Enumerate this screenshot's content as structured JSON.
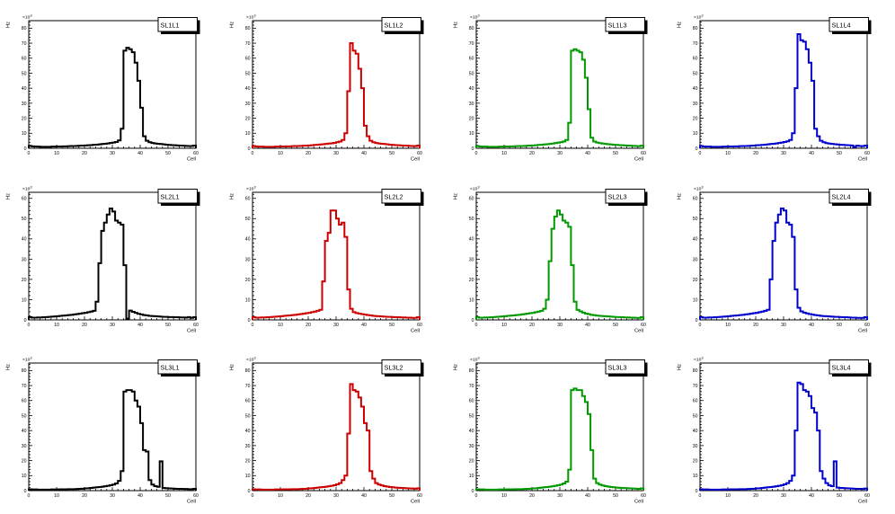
{
  "axes": {
    "x_title": "Cell",
    "y_title": "Hz",
    "y_exponent_base": "×10",
    "y_exponent_power": "3",
    "x_ticks": [
      0,
      10,
      20,
      30,
      40,
      50,
      60
    ],
    "x_range": [
      0,
      60
    ],
    "x_minor_step": 2,
    "y_minor_step": 2
  },
  "colors": {
    "black": "#000000",
    "red": "#cc0000",
    "green": "#009900",
    "blue": "#0000cc"
  },
  "chart_data": [
    {
      "type": "histogram",
      "label": "SL1L1",
      "color_name": "black",
      "series_color": "#000000",
      "x_label": "Cell",
      "y_label": "Hz",
      "y_scale_factor": "×10³",
      "x_range": [
        0,
        60
      ],
      "bin_width": 1,
      "y_max": 85,
      "y_ticks": [
        0,
        10,
        20,
        30,
        40,
        50,
        60,
        70,
        80
      ],
      "values": [
        1.6,
        1.3,
        1.2,
        1.1,
        1.0,
        1.0,
        1.0,
        1.0,
        1.1,
        1.1,
        1.2,
        1.2,
        1.3,
        1.3,
        1.4,
        1.5,
        1.5,
        1.6,
        1.7,
        1.8,
        1.9,
        2.0,
        2.1,
        2.3,
        2.4,
        2.6,
        2.8,
        3.0,
        3.2,
        3.5,
        3.8,
        4.2,
        5.2,
        13,
        65,
        67,
        66,
        64,
        57,
        45,
        27,
        8,
        5,
        4,
        3.5,
        3.2,
        3.0,
        2.8,
        2.6,
        2.4,
        2.2,
        2.1,
        2.0,
        1.9,
        1.8,
        1.7,
        1.6,
        1.5,
        1.5,
        1.8
      ]
    },
    {
      "type": "histogram",
      "label": "SL1L2",
      "color_name": "red",
      "series_color": "#cc0000",
      "x_label": "Cell",
      "y_label": "Hz",
      "y_scale_factor": "×10³",
      "x_range": [
        0,
        60
      ],
      "bin_width": 1,
      "y_max": 85,
      "y_ticks": [
        0,
        10,
        20,
        30,
        40,
        50,
        60,
        70,
        80
      ],
      "values": [
        1.5,
        1.2,
        1.1,
        1.1,
        1.0,
        1.0,
        1.0,
        1.0,
        1.1,
        1.1,
        1.2,
        1.2,
        1.3,
        1.3,
        1.4,
        1.5,
        1.5,
        1.6,
        1.7,
        1.8,
        1.9,
        2.0,
        2.2,
        2.3,
        2.5,
        2.7,
        2.9,
        3.1,
        3.3,
        3.6,
        4.0,
        4.5,
        5.5,
        10,
        38,
        70,
        65,
        63,
        53,
        40,
        15,
        8,
        5,
        4,
        3.5,
        3.2,
        3.0,
        2.8,
        2.6,
        2.4,
        2.2,
        2.1,
        2.0,
        1.9,
        1.8,
        1.7,
        1.6,
        1.5,
        1.4,
        1.8
      ]
    },
    {
      "type": "histogram",
      "label": "SL1L3",
      "color_name": "green",
      "series_color": "#009900",
      "x_label": "Cell",
      "y_label": "Hz",
      "y_scale_factor": "×10³",
      "x_range": [
        0,
        60
      ],
      "bin_width": 1,
      "y_max": 85,
      "y_ticks": [
        0,
        10,
        20,
        30,
        40,
        50,
        60,
        70,
        80
      ],
      "values": [
        1.5,
        1.2,
        1.1,
        1.1,
        1.0,
        1.0,
        1.0,
        1.0,
        1.1,
        1.1,
        1.2,
        1.2,
        1.3,
        1.3,
        1.4,
        1.5,
        1.5,
        1.6,
        1.7,
        1.8,
        1.9,
        2.0,
        2.2,
        2.3,
        2.5,
        2.7,
        2.9,
        3.1,
        3.4,
        3.7,
        4.0,
        4.5,
        5.5,
        17,
        65,
        66,
        65,
        64,
        59,
        47,
        26,
        7,
        4.5,
        3.8,
        3.4,
        3.1,
        2.9,
        2.7,
        2.5,
        2.3,
        2.2,
        2.1,
        2.0,
        1.9,
        1.8,
        1.7,
        1.6,
        1.5,
        1.4,
        1.7
      ]
    },
    {
      "type": "histogram",
      "label": "SL1L4",
      "color_name": "blue",
      "series_color": "#0000cc",
      "x_label": "Cell",
      "y_label": "Hz",
      "y_scale_factor": "×10³",
      "x_range": [
        0,
        60
      ],
      "bin_width": 1,
      "y_max": 85,
      "y_ticks": [
        0,
        10,
        20,
        30,
        40,
        50,
        60,
        70,
        80
      ],
      "values": [
        1.5,
        1.2,
        1.1,
        1.1,
        1.0,
        1.0,
        1.0,
        1.0,
        1.1,
        1.1,
        1.2,
        1.2,
        1.3,
        1.3,
        1.4,
        1.5,
        1.5,
        1.6,
        1.7,
        1.8,
        2.0,
        2.1,
        2.2,
        2.4,
        2.6,
        2.8,
        3.0,
        3.2,
        3.5,
        3.8,
        4.2,
        4.6,
        5.5,
        10,
        40,
        76,
        72,
        71,
        66,
        57,
        45,
        13,
        8,
        5,
        4,
        3.4,
        3.1,
        2.9,
        2.7,
        2.5,
        2.3,
        2.2,
        2.1,
        2.0,
        1.9,
        0.9,
        1.7,
        1.5,
        1.4,
        1.8
      ]
    },
    {
      "type": "histogram",
      "label": "SL2L1",
      "color_name": "black",
      "series_color": "#000000",
      "x_label": "Cell",
      "y_label": "Hz",
      "y_scale_factor": "×10³",
      "x_range": [
        0,
        60
      ],
      "bin_width": 1,
      "y_max": 63,
      "y_ticks": [
        0,
        10,
        20,
        30,
        40,
        50,
        60
      ],
      "values": [
        1.4,
        1.1,
        1.1,
        1.2,
        1.2,
        1.3,
        1.4,
        1.5,
        1.6,
        1.7,
        1.8,
        2.0,
        2.1,
        2.2,
        2.4,
        2.5,
        2.7,
        2.9,
        3.1,
        3.3,
        3.5,
        3.8,
        4.1,
        4.5,
        9,
        28,
        44,
        48,
        52,
        55,
        53.5,
        49,
        48,
        47,
        27,
        0.6,
        4.6,
        4.0,
        3.5,
        3.0,
        2.7,
        2.4,
        2.2,
        2.0,
        1.9,
        1.8,
        1.7,
        1.6,
        1.5,
        1.5,
        1.4,
        1.4,
        1.3,
        1.3,
        1.2,
        1.2,
        1.1,
        1.4,
        1.0,
        1.3
      ]
    },
    {
      "type": "histogram",
      "label": "SL2L2",
      "color_name": "red",
      "series_color": "#cc0000",
      "x_label": "Cell",
      "y_label": "Hz",
      "y_scale_factor": "×10³",
      "x_range": [
        0,
        60
      ],
      "bin_width": 1,
      "y_max": 63,
      "y_ticks": [
        0,
        10,
        20,
        30,
        40,
        50,
        60
      ],
      "values": [
        1.4,
        1.1,
        1.1,
        1.2,
        1.2,
        1.3,
        1.4,
        1.5,
        1.6,
        1.7,
        1.8,
        2.0,
        2.1,
        2.2,
        2.4,
        2.5,
        2.7,
        2.9,
        3.1,
        3.3,
        3.5,
        3.8,
        4.1,
        4.5,
        5,
        19,
        39,
        43,
        54,
        54,
        50,
        47,
        48,
        41,
        15,
        5.5,
        3.8,
        3.4,
        3.1,
        2.8,
        2.6,
        2.4,
        2.2,
        2.0,
        1.9,
        1.8,
        1.7,
        1.6,
        1.5,
        1.5,
        1.4,
        1.3,
        1.3,
        1.2,
        1.2,
        1.1,
        1.1,
        1.0,
        1.0,
        1.3
      ]
    },
    {
      "type": "histogram",
      "label": "SL2L3",
      "color_name": "green",
      "series_color": "#009900",
      "x_label": "Cell",
      "y_label": "Hz",
      "y_scale_factor": "×10³",
      "x_range": [
        0,
        60
      ],
      "bin_width": 1,
      "y_max": 63,
      "y_ticks": [
        0,
        10,
        20,
        30,
        40,
        50,
        60
      ],
      "values": [
        1.4,
        1.1,
        1.1,
        1.2,
        1.2,
        1.3,
        1.4,
        1.5,
        1.6,
        1.7,
        1.8,
        2.0,
        2.1,
        2.2,
        2.4,
        2.5,
        2.7,
        2.9,
        3.1,
        3.3,
        3.5,
        3.8,
        4.1,
        4.5,
        5.5,
        10,
        29,
        45,
        51,
        54,
        52,
        49,
        48,
        46,
        27,
        9,
        5,
        4.2,
        3.6,
        3.1,
        2.8,
        2.5,
        2.3,
        2.1,
        2.0,
        1.9,
        1.8,
        1.7,
        1.6,
        1.5,
        1.4,
        1.4,
        1.3,
        1.2,
        1.2,
        1.1,
        1.1,
        1.0,
        1.0,
        1.3
      ]
    },
    {
      "type": "histogram",
      "label": "SL2L4",
      "color_name": "blue",
      "series_color": "#0000cc",
      "x_label": "Cell",
      "y_label": "Hz",
      "y_scale_factor": "×10³",
      "x_range": [
        0,
        60
      ],
      "bin_width": 1,
      "y_max": 63,
      "y_ticks": [
        0,
        10,
        20,
        30,
        40,
        50,
        60
      ],
      "values": [
        1.4,
        1.1,
        1.1,
        1.2,
        1.2,
        1.3,
        1.4,
        1.5,
        1.6,
        1.7,
        1.8,
        2.0,
        2.1,
        2.2,
        2.4,
        2.5,
        2.7,
        2.9,
        3.1,
        3.3,
        3.5,
        3.8,
        4.1,
        4.5,
        5,
        20,
        39,
        48,
        52,
        55,
        54,
        48,
        47,
        41,
        15,
        6,
        4.2,
        3.6,
        3.2,
        2.9,
        2.6,
        2.4,
        2.2,
        2.0,
        1.9,
        1.8,
        1.7,
        1.6,
        1.5,
        1.5,
        1.4,
        1.3,
        1.3,
        1.2,
        1.1,
        1.1,
        1.0,
        1.0,
        1.0,
        1.3
      ]
    },
    {
      "type": "histogram",
      "label": "SL3L1",
      "color_name": "black",
      "series_color": "#000000",
      "x_label": "Cell",
      "y_label": "Hz",
      "y_scale_factor": "×10³",
      "x_range": [
        0,
        60
      ],
      "bin_width": 1,
      "y_max": 85,
      "y_ticks": [
        0,
        10,
        20,
        30,
        40,
        50,
        60,
        70,
        80
      ],
      "values": [
        0.9,
        0.8,
        0.8,
        0.7,
        0.7,
        0.7,
        0.7,
        0.7,
        0.8,
        0.8,
        0.8,
        0.9,
        0.9,
        0.9,
        1.0,
        1.0,
        1.0,
        1.1,
        1.2,
        1.3,
        1.5,
        1.6,
        1.8,
        2.0,
        2.2,
        2.4,
        2.6,
        2.9,
        3.2,
        3.6,
        4.0,
        4.8,
        6.5,
        13,
        66,
        67,
        67,
        66,
        60,
        56,
        45,
        27,
        26,
        7,
        4,
        3,
        2.5,
        19.5,
        1.8,
        1.6,
        1.5,
        1.4,
        1.3,
        1.2,
        1.2,
        1.1,
        1.1,
        1.0,
        1.0,
        1.2
      ]
    },
    {
      "type": "histogram",
      "label": "SL3L2",
      "color_name": "red",
      "series_color": "#cc0000",
      "x_label": "Cell",
      "y_label": "Hz",
      "y_scale_factor": "×10³",
      "x_range": [
        0,
        60
      ],
      "bin_width": 1,
      "y_max": 85,
      "y_ticks": [
        0,
        10,
        20,
        30,
        40,
        50,
        60,
        70,
        80
      ],
      "values": [
        0.9,
        0.8,
        0.8,
        0.7,
        0.7,
        0.7,
        0.7,
        0.7,
        0.8,
        0.8,
        0.8,
        0.9,
        0.9,
        0.9,
        1.0,
        1.0,
        1.0,
        1.1,
        1.2,
        1.3,
        1.5,
        1.6,
        1.8,
        2.0,
        2.2,
        2.4,
        2.6,
        2.9,
        3.2,
        3.6,
        4.2,
        5.0,
        7.0,
        10,
        38,
        71,
        67,
        66,
        62,
        56,
        45,
        40,
        13,
        8,
        5,
        4,
        3.5,
        3.0,
        2.7,
        2.4,
        2.2,
        2.0,
        1.9,
        1.8,
        1.7,
        1.6,
        1.5,
        1.4,
        1.3,
        1.6
      ]
    },
    {
      "type": "histogram",
      "label": "SL3L3",
      "color_name": "green",
      "series_color": "#009900",
      "x_label": "Cell",
      "y_label": "Hz",
      "y_scale_factor": "×10³",
      "x_range": [
        0,
        60
      ],
      "bin_width": 1,
      "y_max": 85,
      "y_ticks": [
        0,
        10,
        20,
        30,
        40,
        50,
        60,
        70,
        80
      ],
      "values": [
        0.9,
        0.8,
        0.8,
        0.7,
        0.7,
        0.7,
        0.7,
        0.7,
        0.8,
        0.8,
        0.8,
        0.9,
        0.9,
        0.9,
        1.0,
        1.0,
        1.0,
        1.1,
        1.2,
        1.3,
        1.5,
        1.6,
        1.8,
        2.0,
        2.2,
        2.4,
        2.6,
        2.9,
        3.2,
        3.6,
        4.0,
        4.8,
        6.0,
        14,
        67,
        68,
        67,
        67,
        63,
        59,
        51,
        27,
        8,
        5,
        4,
        3.4,
        3.0,
        2.7,
        2.4,
        2.2,
        2.0,
        1.9,
        1.8,
        1.7,
        1.6,
        1.5,
        1.4,
        1.3,
        1.2,
        1.5
      ]
    },
    {
      "type": "histogram",
      "label": "SL3L4",
      "color_name": "blue",
      "series_color": "#0000cc",
      "x_label": "Cell",
      "y_label": "Hz",
      "y_scale_factor": "×10³",
      "x_range": [
        0,
        60
      ],
      "bin_width": 1,
      "y_max": 85,
      "y_ticks": [
        0,
        10,
        20,
        30,
        40,
        50,
        60,
        70,
        80
      ],
      "values": [
        0.9,
        0.8,
        0.8,
        0.7,
        0.7,
        0.7,
        0.7,
        0.7,
        0.8,
        0.8,
        0.8,
        0.9,
        0.9,
        0.9,
        1.0,
        1.0,
        1.0,
        1.1,
        1.2,
        1.3,
        1.5,
        1.6,
        1.8,
        2.0,
        2.2,
        2.4,
        2.6,
        2.9,
        3.2,
        3.6,
        4.2,
        5.0,
        6.5,
        10,
        40,
        72,
        71,
        67,
        66,
        63,
        55,
        52,
        40,
        13,
        8,
        5,
        3.5,
        3.0,
        19.5,
        2.0,
        1.8,
        1.7,
        1.6,
        1.5,
        1.4,
        1.3,
        1.2,
        1.2,
        1.1,
        1.4
      ]
    }
  ]
}
